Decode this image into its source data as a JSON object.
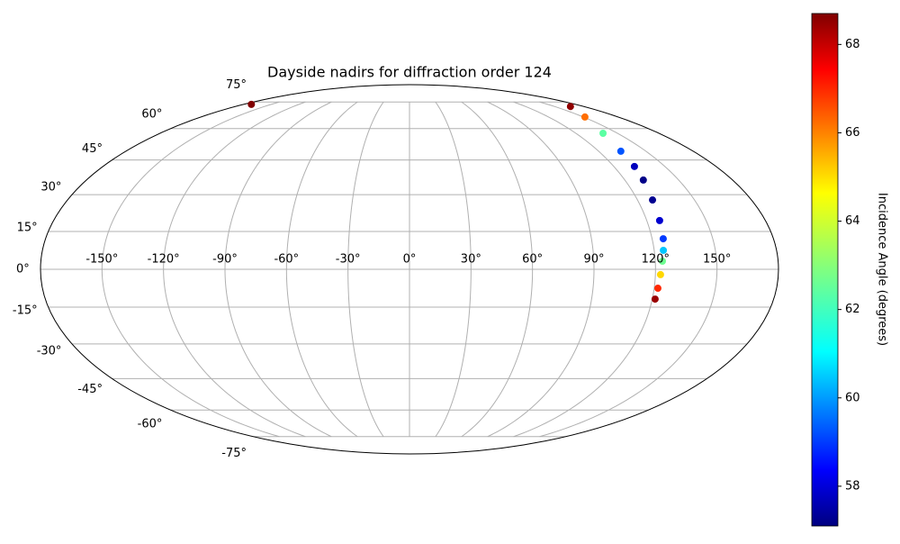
{
  "chart_data": {
    "type": "scatter",
    "projection": "mollweide",
    "title": "Dayside nadirs for diffraction order 124",
    "lon": [
      166.5,
      151.3,
      139.6,
      134.1,
      132.1,
      130.3,
      127.9,
      126.5,
      125.5,
      124.5,
      123.5,
      122.5,
      121.8,
      121.4,
      -171.6
    ],
    "lat": [
      72.2,
      66.1,
      57.6,
      49.0,
      42.1,
      36.2,
      27.8,
      19.4,
      12.1,
      7.5,
      3.2,
      -2.1,
      -7.5,
      -11.8,
      73.5
    ],
    "values": [
      68.5,
      66.0,
      62.5,
      59.5,
      57.8,
      57.2,
      57.3,
      58.0,
      59.2,
      60.8,
      62.7,
      64.8,
      66.8,
      68.4,
      68.7
    ],
    "xticks": [
      {
        "value": -150,
        "label": "-150°"
      },
      {
        "value": -120,
        "label": "-120°"
      },
      {
        "value": -90,
        "label": "-90°"
      },
      {
        "value": -60,
        "label": "-60°"
      },
      {
        "value": -30,
        "label": "-30°"
      },
      {
        "value": 0,
        "label": "0°"
      },
      {
        "value": 30,
        "label": "30°"
      },
      {
        "value": 60,
        "label": "60°"
      },
      {
        "value": 90,
        "label": "90°"
      },
      {
        "value": 120,
        "label": "120°"
      },
      {
        "value": 150,
        "label": "150°"
      }
    ],
    "yticks": [
      {
        "value": -75,
        "label": "-75°"
      },
      {
        "value": -60,
        "label": "-60°"
      },
      {
        "value": -45,
        "label": "-45°"
      },
      {
        "value": -30,
        "label": "-30°"
      },
      {
        "value": -15,
        "label": "-15°"
      },
      {
        "value": 0,
        "label": "0°"
      },
      {
        "value": 15,
        "label": "15°"
      },
      {
        "value": 30,
        "label": "30°"
      },
      {
        "value": 45,
        "label": "45°"
      },
      {
        "value": 60,
        "label": "60°"
      },
      {
        "value": 75,
        "label": "75°"
      }
    ],
    "grid": true,
    "colorbar": {
      "label": "Incidence Angle (degrees)",
      "colormap": "jet",
      "lim": [
        57.1,
        68.7
      ],
      "ticks": [
        58,
        60,
        62,
        64,
        66,
        68
      ]
    }
  }
}
